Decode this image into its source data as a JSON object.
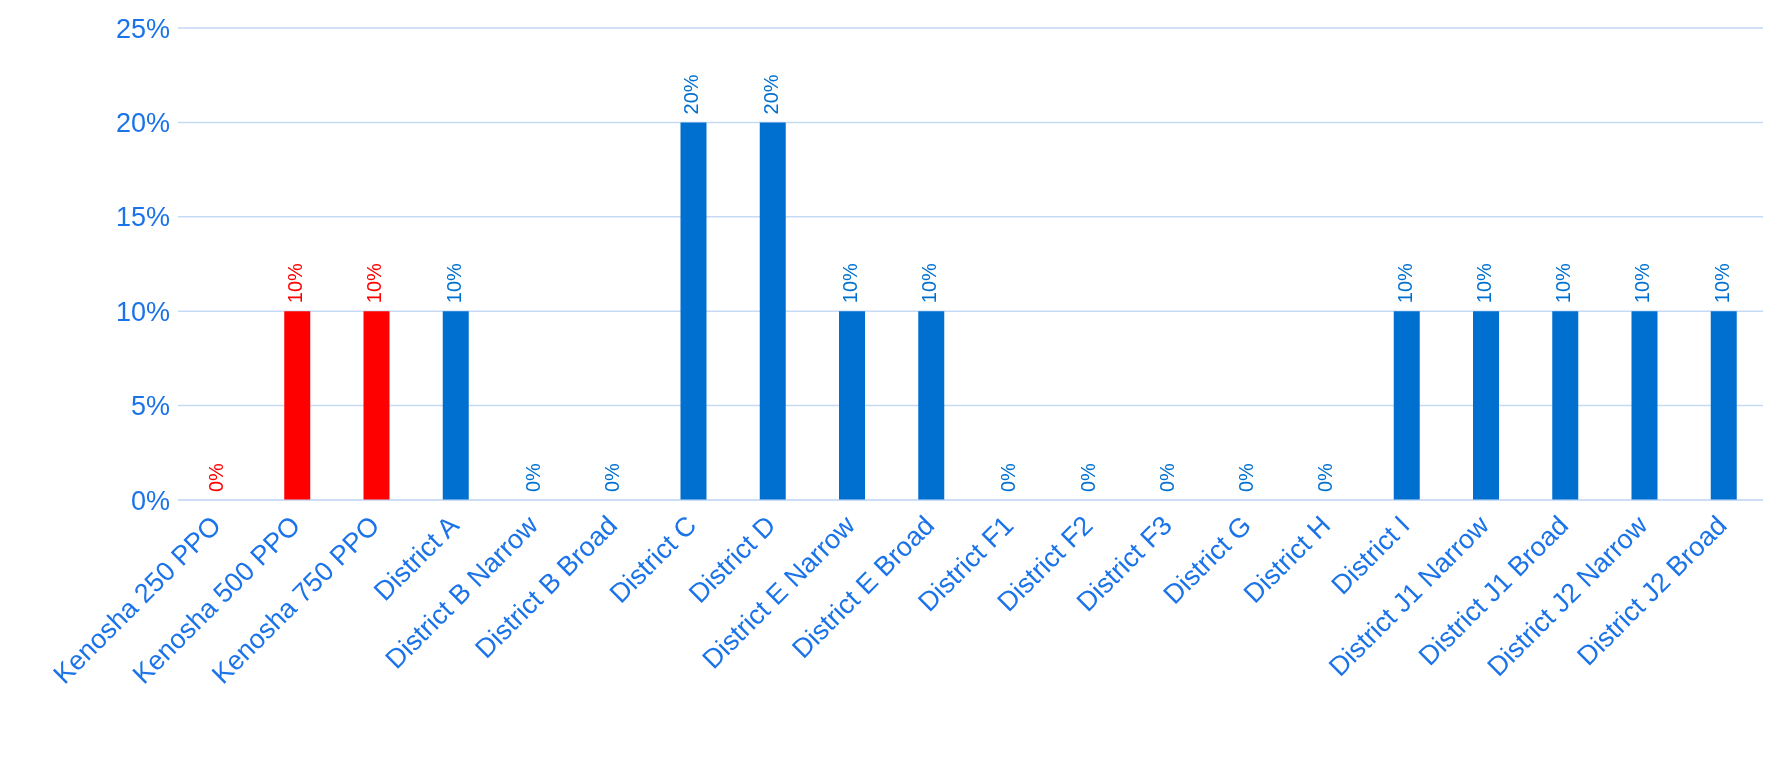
{
  "chart_data": {
    "type": "bar",
    "categories": [
      "Kenosha 250 PPO",
      "Kenosha 500 PPO",
      "Kenosha 750 PPO",
      "District A",
      "District B Narrow",
      "District B Broad",
      "District C",
      "District D",
      "District E Narrow",
      "District E Broad",
      "District F1",
      "District F2",
      "District F3",
      "District G",
      "District H",
      "District I",
      "District J1 Narrow",
      "District J1 Broad",
      "District J2 Narrow",
      "District J2 Broad"
    ],
    "values": [
      0,
      10,
      10,
      10,
      0,
      0,
      20,
      20,
      10,
      10,
      0,
      0,
      0,
      0,
      0,
      10,
      10,
      10,
      10,
      10
    ],
    "value_labels": [
      "0%",
      "10%",
      "10%",
      "10%",
      "0%",
      "0%",
      "20%",
      "20%",
      "10%",
      "10%",
      "0%",
      "0%",
      "0%",
      "0%",
      "0%",
      "10%",
      "10%",
      "10%",
      "10%",
      "10%"
    ],
    "colors": [
      "#ff0000",
      "#ff0000",
      "#ff0000",
      "#0070d0",
      "#0070d0",
      "#0070d0",
      "#0070d0",
      "#0070d0",
      "#0070d0",
      "#0070d0",
      "#0070d0",
      "#0070d0",
      "#0070d0",
      "#0070d0",
      "#0070d0",
      "#0070d0",
      "#0070d0",
      "#0070d0",
      "#0070d0",
      "#0070d0"
    ],
    "ylim": [
      0,
      25
    ],
    "yticks": [
      {
        "value": 0,
        "label": "0%"
      },
      {
        "value": 5,
        "label": "5%"
      },
      {
        "value": 10,
        "label": "10%"
      },
      {
        "value": 15,
        "label": "15%"
      },
      {
        "value": 20,
        "label": "20%"
      },
      {
        "value": 25,
        "label": "25%"
      }
    ],
    "grid": "y",
    "legend": false
  }
}
